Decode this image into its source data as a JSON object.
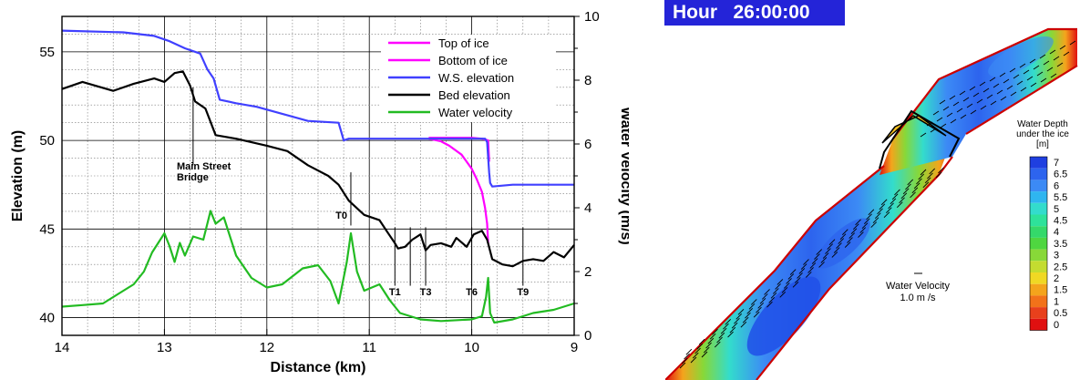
{
  "chart_data": [
    {
      "type": "line",
      "xlabel": "Distance (km)",
      "ylabel": "Elevation (m)",
      "y2label": "Water Velocity (m/s)",
      "xlim": [
        14,
        9
      ],
      "ylim": [
        39,
        57
      ],
      "y2lim": [
        0,
        10
      ],
      "x_ticks": [
        "14",
        "13",
        "12",
        "11",
        "10",
        "9"
      ],
      "y_ticks": [
        "40",
        "45",
        "50",
        "55"
      ],
      "y2_ticks": [
        "0",
        "2",
        "4",
        "6",
        "8",
        "10"
      ],
      "grid": true,
      "legend_position": "top-right",
      "series": [
        {
          "name": "Top of ice",
          "color": "#ff00ff",
          "axis": "left",
          "points": [
            [
              10.42,
              50.15
            ],
            [
              10.2,
              50.15
            ],
            [
              10.0,
              50.15
            ],
            [
              9.9,
              50.1
            ],
            [
              9.84,
              50.0
            ],
            [
              9.83,
              48.8
            ]
          ]
        },
        {
          "name": "Bottom of ice",
          "color": "#ff00ff",
          "axis": "left",
          "points": [
            [
              10.42,
              50.1
            ],
            [
              10.3,
              49.95
            ],
            [
              10.22,
              49.7
            ],
            [
              10.1,
              49.2
            ],
            [
              10.0,
              48.4
            ],
            [
              9.95,
              47.8
            ],
            [
              9.9,
              47.1
            ],
            [
              9.87,
              46.2
            ],
            [
              9.85,
              45.3
            ],
            [
              9.84,
              44.2
            ]
          ]
        },
        {
          "name": "W.S. elevation",
          "color": "#4040ff",
          "axis": "left",
          "points": [
            [
              14.0,
              56.2
            ],
            [
              13.4,
              56.1
            ],
            [
              13.1,
              55.9
            ],
            [
              12.95,
              55.6
            ],
            [
              12.8,
              55.2
            ],
            [
              12.65,
              54.9
            ],
            [
              12.58,
              54.0
            ],
            [
              12.52,
              53.5
            ],
            [
              12.46,
              52.3
            ],
            [
              12.3,
              52.1
            ],
            [
              12.1,
              51.9
            ],
            [
              11.85,
              51.5
            ],
            [
              11.6,
              51.1
            ],
            [
              11.3,
              51.0
            ],
            [
              11.27,
              50.4
            ],
            [
              11.25,
              50.0
            ],
            [
              11.2,
              50.1
            ],
            [
              11.0,
              50.1
            ],
            [
              10.5,
              50.1
            ],
            [
              10.0,
              50.1
            ],
            [
              9.87,
              50.1
            ],
            [
              9.85,
              49.9
            ],
            [
              9.83,
              48.2
            ],
            [
              9.82,
              47.6
            ],
            [
              9.8,
              47.4
            ],
            [
              9.6,
              47.5
            ],
            [
              9.3,
              47.5
            ],
            [
              9.0,
              47.5
            ]
          ]
        },
        {
          "name": "Bed elevation",
          "color": "#000000",
          "axis": "left",
          "points": [
            [
              14.0,
              52.9
            ],
            [
              13.8,
              53.3
            ],
            [
              13.5,
              52.8
            ],
            [
              13.3,
              53.2
            ],
            [
              13.1,
              53.5
            ],
            [
              13.0,
              53.3
            ],
            [
              12.9,
              53.8
            ],
            [
              12.82,
              53.9
            ],
            [
              12.75,
              53.1
            ],
            [
              12.7,
              52.2
            ],
            [
              12.6,
              51.8
            ],
            [
              12.5,
              50.3
            ],
            [
              12.3,
              50.1
            ],
            [
              12.0,
              49.7
            ],
            [
              11.8,
              49.4
            ],
            [
              11.6,
              48.6
            ],
            [
              11.4,
              48.0
            ],
            [
              11.3,
              47.5
            ],
            [
              11.2,
              46.6
            ],
            [
              11.05,
              45.8
            ],
            [
              10.9,
              45.5
            ],
            [
              10.82,
              44.8
            ],
            [
              10.75,
              44.2
            ],
            [
              10.72,
              43.9
            ],
            [
              10.65,
              44.0
            ],
            [
              10.58,
              44.4
            ],
            [
              10.5,
              44.7
            ],
            [
              10.45,
              43.8
            ],
            [
              10.4,
              44.1
            ],
            [
              10.3,
              44.2
            ],
            [
              10.2,
              44.0
            ],
            [
              10.15,
              44.5
            ],
            [
              10.05,
              44.0
            ],
            [
              9.98,
              44.7
            ],
            [
              9.9,
              44.9
            ],
            [
              9.85,
              44.4
            ],
            [
              9.8,
              43.3
            ],
            [
              9.7,
              43.0
            ],
            [
              9.6,
              42.9
            ],
            [
              9.5,
              43.2
            ],
            [
              9.4,
              43.3
            ],
            [
              9.3,
              43.2
            ],
            [
              9.2,
              43.7
            ],
            [
              9.1,
              43.4
            ],
            [
              9.0,
              44.1
            ]
          ]
        },
        {
          "name": "Water velocity",
          "color": "#22bb22",
          "axis": "right",
          "points": [
            [
              14.0,
              0.9
            ],
            [
              13.8,
              0.95
            ],
            [
              13.6,
              1.0
            ],
            [
              13.45,
              1.3
            ],
            [
              13.3,
              1.6
            ],
            [
              13.2,
              2.0
            ],
            [
              13.12,
              2.6
            ],
            [
              13.0,
              3.2
            ],
            [
              12.95,
              2.8
            ],
            [
              12.9,
              2.3
            ],
            [
              12.85,
              2.9
            ],
            [
              12.8,
              2.5
            ],
            [
              12.72,
              3.1
            ],
            [
              12.62,
              3.0
            ],
            [
              12.55,
              3.9
            ],
            [
              12.5,
              3.5
            ],
            [
              12.42,
              3.7
            ],
            [
              12.3,
              2.5
            ],
            [
              12.15,
              1.8
            ],
            [
              12.0,
              1.5
            ],
            [
              11.85,
              1.6
            ],
            [
              11.65,
              2.1
            ],
            [
              11.5,
              2.2
            ],
            [
              11.38,
              1.7
            ],
            [
              11.3,
              1.0
            ],
            [
              11.22,
              2.3
            ],
            [
              11.18,
              3.2
            ],
            [
              11.12,
              2.0
            ],
            [
              11.05,
              1.4
            ],
            [
              10.9,
              1.6
            ],
            [
              10.8,
              1.1
            ],
            [
              10.7,
              0.7
            ],
            [
              10.5,
              0.5
            ],
            [
              10.3,
              0.45
            ],
            [
              10.0,
              0.5
            ],
            [
              9.9,
              0.6
            ],
            [
              9.86,
              1.2
            ],
            [
              9.84,
              1.8
            ],
            [
              9.82,
              0.7
            ],
            [
              9.78,
              0.4
            ],
            [
              9.6,
              0.5
            ],
            [
              9.4,
              0.7
            ],
            [
              9.2,
              0.8
            ],
            [
              9.0,
              1.0
            ]
          ]
        }
      ],
      "annotations": [
        {
          "text": "Main Street",
          "text2": "Bridge",
          "x": 12.72
        },
        {
          "text": "T0",
          "x": 11.18
        },
        {
          "text": "T1",
          "x": 10.75
        },
        {
          "text": "T3",
          "x": 10.45
        },
        {
          "text": "T6",
          "x": 10.0
        },
        {
          "text": "T9",
          "x": 9.5
        }
      ],
      "section_marks_x": [
        10.75,
        10.6,
        10.45,
        10.0,
        9.5
      ]
    },
    {
      "type": "heatmap",
      "colorbar_title": [
        "Water Depth",
        "under the ice",
        "[m]"
      ],
      "colorbar_labels": [
        "7",
        "6.5",
        "6",
        "5.5",
        "5",
        "4.5",
        "4",
        "3.5",
        "3",
        "2.5",
        "2",
        "1.5",
        "1",
        "0.5",
        "0"
      ],
      "colorbar_colors": [
        "#1f3fe0",
        "#2d64ee",
        "#3c8af5",
        "#2fb5f0",
        "#33dccc",
        "#2ee29a",
        "#34d96a",
        "#4fd640",
        "#88d838",
        "#c4dc30",
        "#f0d824",
        "#f4a41c",
        "#f2721a",
        "#e8401c",
        "#e01010"
      ],
      "vector_label": "Water Velocity",
      "vector_scale": "1.0 m /s"
    }
  ],
  "overlay": {
    "time_label": "Hour   26:00:00"
  }
}
